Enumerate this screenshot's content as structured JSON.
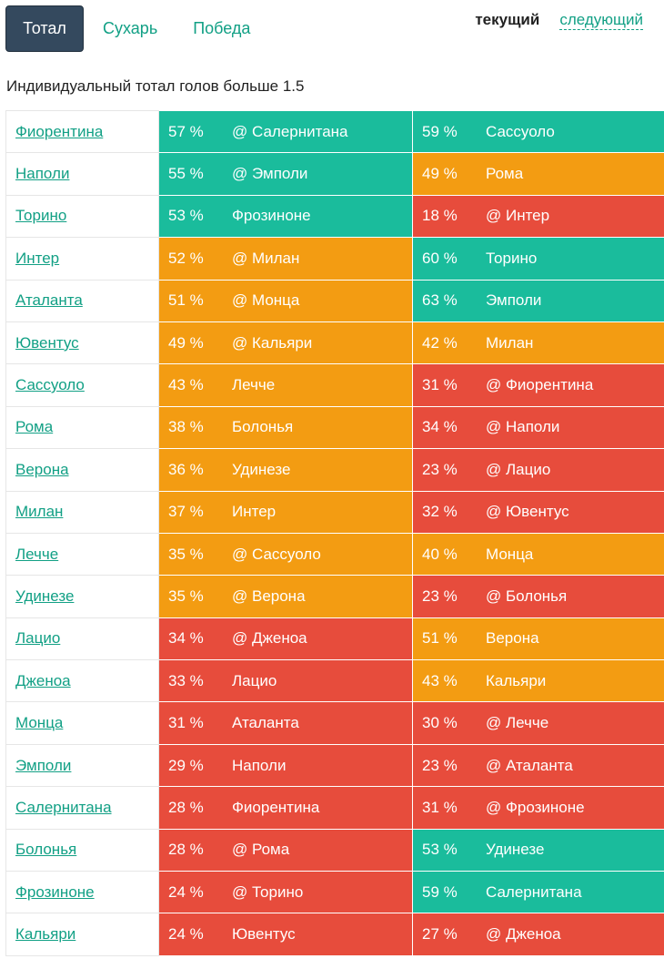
{
  "tabs": [
    {
      "label": "Тотал",
      "active": true
    },
    {
      "label": "Сухарь",
      "active": false
    },
    {
      "label": "Победа",
      "active": false
    }
  ],
  "round_switch": {
    "current": "текущий",
    "next": "следующий"
  },
  "subtitle": "Индивидуальный тотал голов больше 1.5",
  "colors": {
    "green": "#1abc9c",
    "orange": "#f39c12",
    "red": "#e74c3c",
    "link": "#12a085",
    "tab_active_bg": "#34495e"
  },
  "rows": [
    {
      "team": "Фиорентина",
      "current": {
        "pct": "57 %",
        "opp": "@ Салернитана",
        "color": "green"
      },
      "next": {
        "pct": "59 %",
        "opp": "Сассуоло",
        "color": "green"
      }
    },
    {
      "team": "Наполи",
      "current": {
        "pct": "55 %",
        "opp": "@ Эмполи",
        "color": "green"
      },
      "next": {
        "pct": "49 %",
        "opp": "Рома",
        "color": "orange"
      }
    },
    {
      "team": "Торино",
      "current": {
        "pct": "53 %",
        "opp": "Фрозиноне",
        "color": "green"
      },
      "next": {
        "pct": "18 %",
        "opp": "@ Интер",
        "color": "red"
      }
    },
    {
      "team": "Интер",
      "current": {
        "pct": "52 %",
        "opp": "@ Милан",
        "color": "orange"
      },
      "next": {
        "pct": "60 %",
        "opp": "Торино",
        "color": "green"
      }
    },
    {
      "team": "Аталанта",
      "current": {
        "pct": "51 %",
        "opp": "@ Монца",
        "color": "orange"
      },
      "next": {
        "pct": "63 %",
        "opp": "Эмполи",
        "color": "green"
      }
    },
    {
      "team": "Ювентус",
      "current": {
        "pct": "49 %",
        "opp": "@ Кальяри",
        "color": "orange"
      },
      "next": {
        "pct": "42 %",
        "opp": "Милан",
        "color": "orange"
      }
    },
    {
      "team": "Сассуоло",
      "current": {
        "pct": "43 %",
        "opp": "Лечче",
        "color": "orange"
      },
      "next": {
        "pct": "31 %",
        "opp": "@ Фиорентина",
        "color": "red"
      }
    },
    {
      "team": "Рома",
      "current": {
        "pct": "38 %",
        "opp": "Болонья",
        "color": "orange"
      },
      "next": {
        "pct": "34 %",
        "opp": "@ Наполи",
        "color": "red"
      }
    },
    {
      "team": "Верона",
      "current": {
        "pct": "36 %",
        "opp": "Удинезе",
        "color": "orange"
      },
      "next": {
        "pct": "23 %",
        "opp": "@ Лацио",
        "color": "red"
      }
    },
    {
      "team": "Милан",
      "current": {
        "pct": "37 %",
        "opp": "Интер",
        "color": "orange"
      },
      "next": {
        "pct": "32 %",
        "opp": "@ Ювентус",
        "color": "red"
      }
    },
    {
      "team": "Лечче",
      "current": {
        "pct": "35 %",
        "opp": "@ Сассуоло",
        "color": "orange"
      },
      "next": {
        "pct": "40 %",
        "opp": "Монца",
        "color": "orange"
      }
    },
    {
      "team": "Удинезе",
      "current": {
        "pct": "35 %",
        "opp": "@ Верона",
        "color": "orange"
      },
      "next": {
        "pct": "23 %",
        "opp": "@ Болонья",
        "color": "red"
      }
    },
    {
      "team": "Лацио",
      "current": {
        "pct": "34 %",
        "opp": "@ Дженоа",
        "color": "red"
      },
      "next": {
        "pct": "51 %",
        "opp": "Верона",
        "color": "orange"
      }
    },
    {
      "team": "Дженоа",
      "current": {
        "pct": "33 %",
        "opp": "Лацио",
        "color": "red"
      },
      "next": {
        "pct": "43 %",
        "opp": "Кальяри",
        "color": "orange"
      }
    },
    {
      "team": "Монца",
      "current": {
        "pct": "31 %",
        "opp": "Аталанта",
        "color": "red"
      },
      "next": {
        "pct": "30 %",
        "opp": "@ Лечче",
        "color": "red"
      }
    },
    {
      "team": "Эмполи",
      "current": {
        "pct": "29 %",
        "opp": "Наполи",
        "color": "red"
      },
      "next": {
        "pct": "23 %",
        "opp": "@ Аталанта",
        "color": "red"
      }
    },
    {
      "team": "Салернитана",
      "current": {
        "pct": "28 %",
        "opp": "Фиорентина",
        "color": "red"
      },
      "next": {
        "pct": "31 %",
        "opp": "@ Фрозиноне",
        "color": "red"
      }
    },
    {
      "team": "Болонья",
      "current": {
        "pct": "28 %",
        "opp": "@ Рома",
        "color": "red"
      },
      "next": {
        "pct": "53 %",
        "opp": "Удинезе",
        "color": "green"
      }
    },
    {
      "team": "Фрозиноне",
      "current": {
        "pct": "24 %",
        "opp": "@ Торино",
        "color": "red"
      },
      "next": {
        "pct": "59 %",
        "opp": "Салернитана",
        "color": "green"
      }
    },
    {
      "team": "Кальяри",
      "current": {
        "pct": "24 %",
        "opp": "Ювентус",
        "color": "red"
      },
      "next": {
        "pct": "27 %",
        "opp": "@ Дженоа",
        "color": "red"
      }
    }
  ]
}
